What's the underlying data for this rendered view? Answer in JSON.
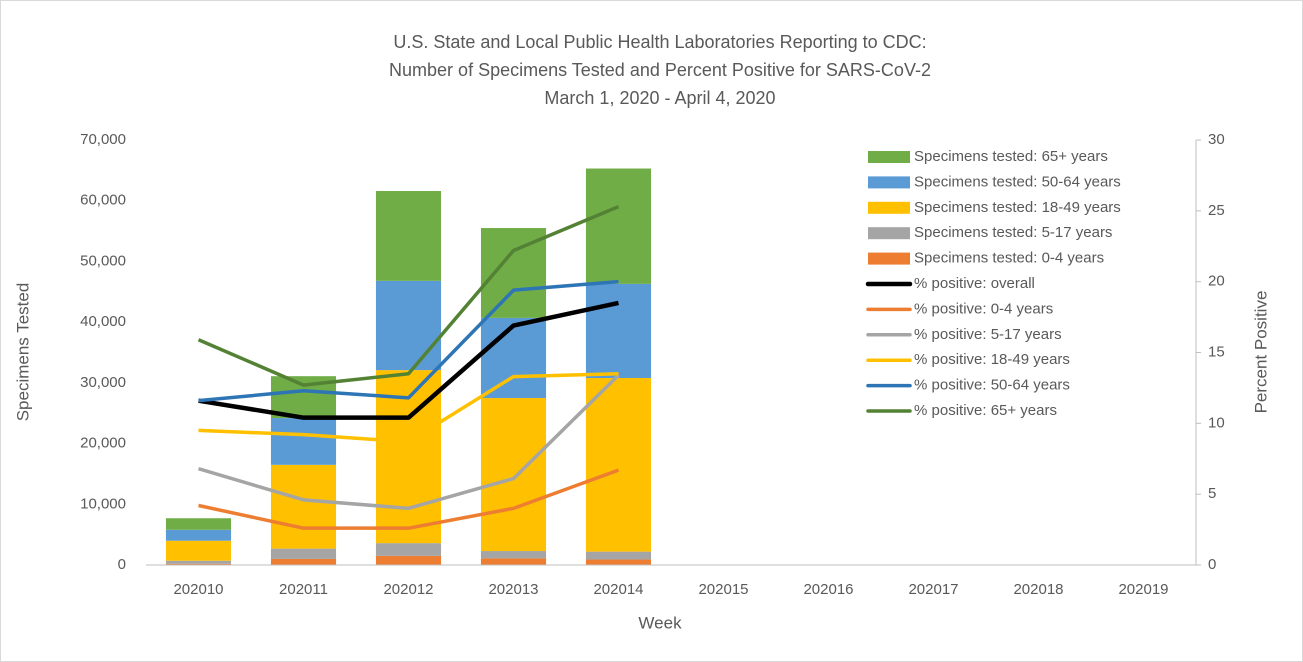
{
  "chart_data": {
    "type": "bar",
    "stacked": true,
    "title": [
      "U.S. State and Local Public Health Laboratories Reporting to CDC:",
      "Number of Specimens Tested and Percent Positive for SARS-CoV-2",
      "March 1, 2020 - April 4, 2020"
    ],
    "x_label": "Week",
    "y_label": "Specimens Tested",
    "y2_label": "Percent Positive",
    "categories": [
      "202010",
      "202011",
      "202012",
      "202013",
      "202014",
      "202015",
      "202016",
      "202017",
      "202018",
      "202019"
    ],
    "ylim": [
      0,
      70000
    ],
    "yticks": [
      0,
      {
        "value": 10000,
        "label": "10,000"
      },
      {
        "value": 20000,
        "label": "20,000"
      },
      {
        "value": 30000,
        "label": "30,000"
      },
      {
        "value": 40000,
        "label": "40,000"
      },
      {
        "value": 50000,
        "label": "50,000"
      },
      {
        "value": 60000,
        "label": "60,000"
      },
      {
        "value": 70000,
        "label": "70,000"
      }
    ],
    "y2lim": [
      0,
      30
    ],
    "y2ticks": [
      0,
      5,
      10,
      15,
      20,
      25,
      30
    ],
    "legend": "right",
    "series": [
      {
        "name": "Specimens tested: 0-4 years",
        "type": "bar",
        "color": "#ed7d31",
        "values": [
          200,
          1000,
          1500,
          1100,
          900,
          null,
          null,
          null,
          null,
          null
        ]
      },
      {
        "name": "Specimens tested: 5-17 years",
        "type": "bar",
        "color": "#a5a5a5",
        "values": [
          500,
          1700,
          2100,
          1200,
          1300,
          null,
          null,
          null,
          null,
          null
        ]
      },
      {
        "name": "Specimens tested: 18-49 years",
        "type": "bar",
        "color": "#ffc000",
        "values": [
          3300,
          13800,
          28500,
          25200,
          28600,
          null,
          null,
          null,
          null,
          null
        ]
      },
      {
        "name": "Specimens tested: 50-64 years",
        "type": "bar",
        "color": "#5b9bd5",
        "values": [
          1800,
          7700,
          14700,
          13200,
          15500,
          null,
          null,
          null,
          null,
          null
        ]
      },
      {
        "name": "Specimens tested: 65+ years",
        "type": "bar",
        "color": "#70ad47",
        "values": [
          1900,
          6900,
          14800,
          14800,
          19000,
          null,
          null,
          null,
          null,
          null
        ]
      },
      {
        "name": "% positive: overall",
        "type": "line",
        "axis": "y2",
        "color": "#000000",
        "values": [
          11.6,
          10.4,
          10.4,
          16.9,
          18.5,
          null,
          null,
          null,
          null,
          null
        ]
      },
      {
        "name": "% positive: 0-4 years",
        "type": "line",
        "axis": "y2",
        "color": "#ed7d31",
        "values": [
          4.2,
          2.6,
          2.6,
          4.0,
          6.7,
          null,
          null,
          null,
          null,
          null
        ]
      },
      {
        "name": "% positive: 5-17 years",
        "type": "line",
        "axis": "y2",
        "color": "#a5a5a5",
        "values": [
          6.8,
          4.6,
          4.0,
          6.1,
          13.4,
          null,
          null,
          null,
          null,
          null
        ]
      },
      {
        "name": "% positive: 18-49 years",
        "type": "line",
        "axis": "y2",
        "color": "#ffc000",
        "values": [
          9.5,
          9.2,
          8.7,
          13.3,
          13.5,
          null,
          null,
          null,
          null,
          null
        ]
      },
      {
        "name": "% positive: 50-64 years",
        "type": "line",
        "axis": "y2",
        "color": "#2e75b6",
        "values": [
          11.6,
          12.3,
          11.8,
          19.4,
          20.0,
          null,
          null,
          null,
          null,
          null
        ]
      },
      {
        "name": "% positive: 65+ years",
        "type": "line",
        "axis": "y2",
        "color": "#548235",
        "values": [
          15.9,
          12.7,
          13.5,
          22.2,
          25.3,
          null,
          null,
          null,
          null,
          null
        ]
      }
    ]
  }
}
